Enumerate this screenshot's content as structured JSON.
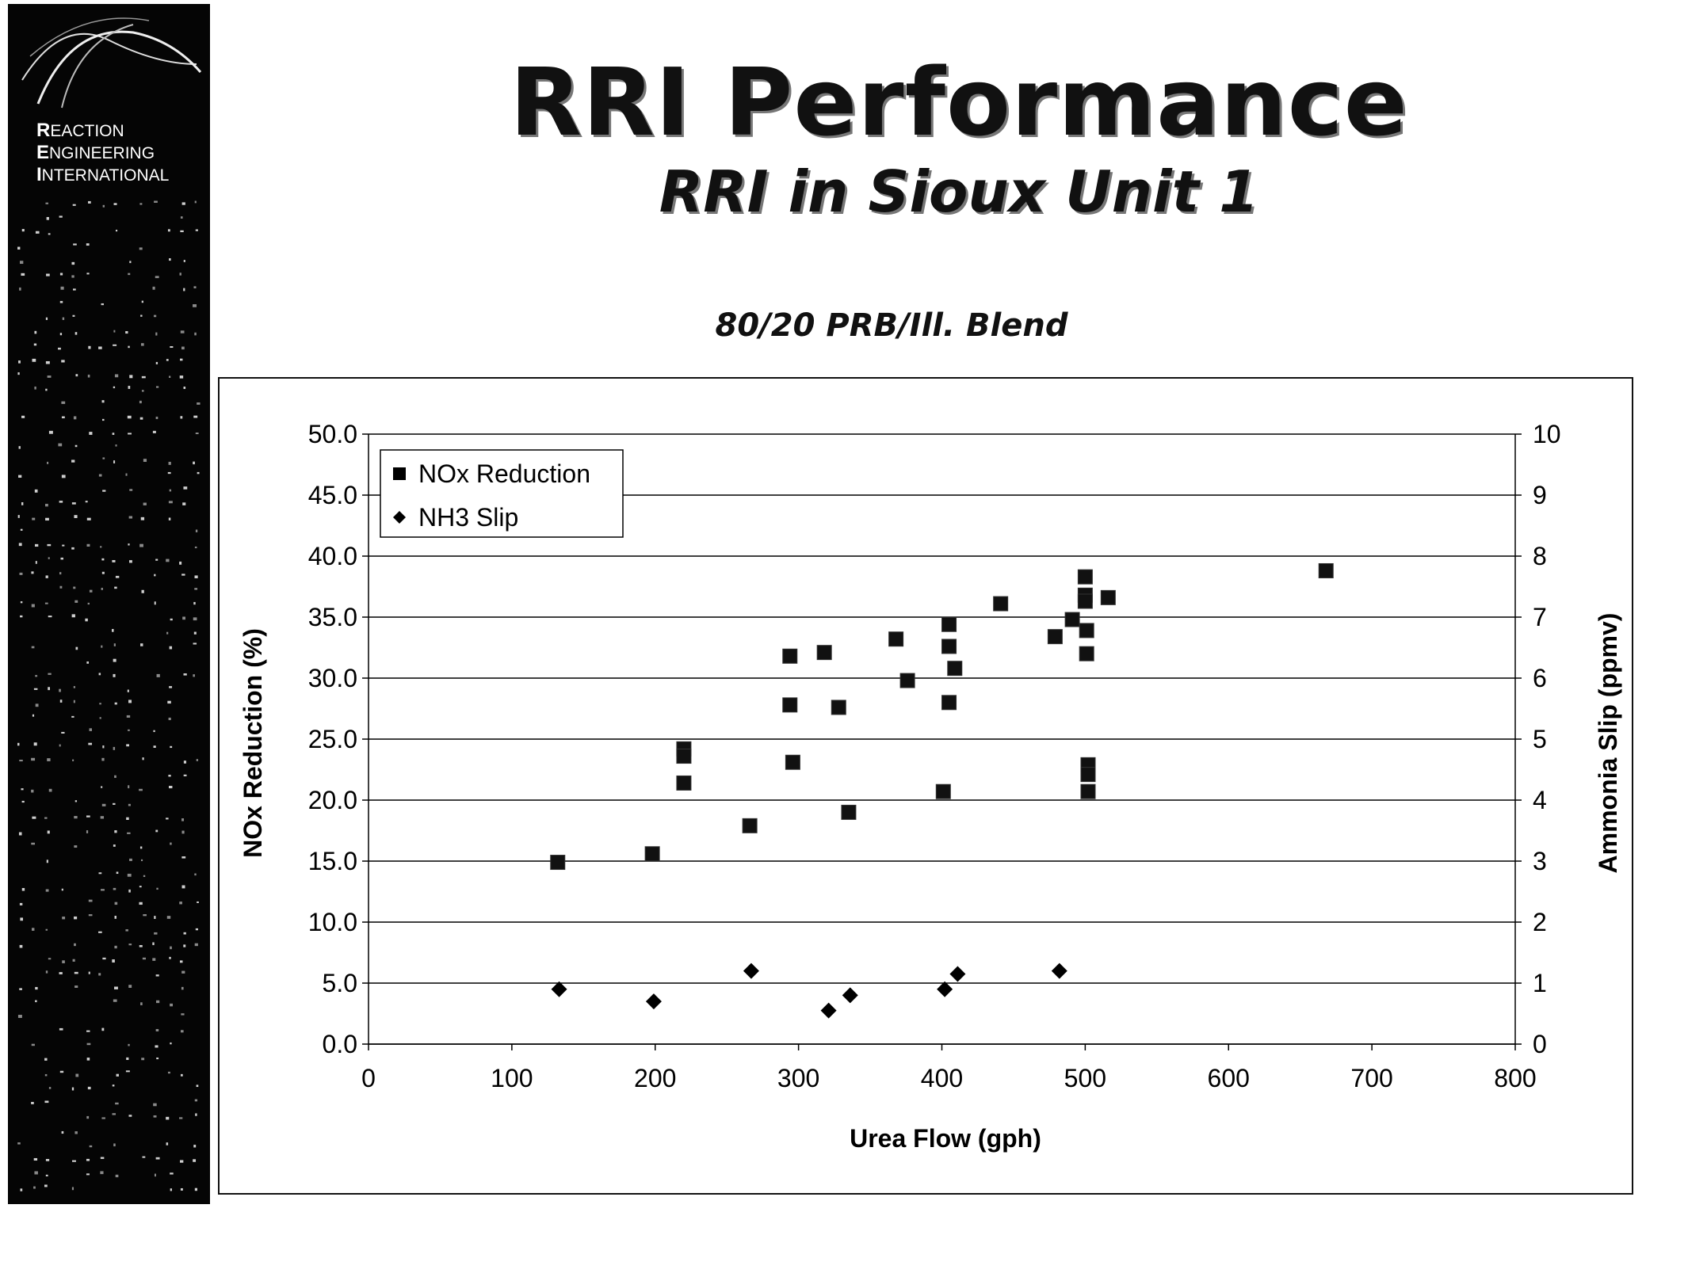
{
  "header": {
    "title": "RRI Performance",
    "subtitle": "RRI in Sioux Unit 1"
  },
  "banner": {
    "logo_lines": [
      {
        "initial": "R",
        "rest": "EACTION"
      },
      {
        "initial": "E",
        "rest": "NGINEERING"
      },
      {
        "initial": "I",
        "rest": "NTERNATIONAL"
      }
    ]
  },
  "chart_data": {
    "type": "scatter",
    "title": "80/20 PRB/Ill. Blend",
    "xlabel": "Urea Flow (gph)",
    "ylabel": "NOx Reduction (%)",
    "y2label": "Ammonia Slip (ppmv)",
    "xlim": [
      0,
      800
    ],
    "ylim": [
      0,
      50
    ],
    "y2lim": [
      0,
      10
    ],
    "xticks": [
      "0",
      "100",
      "200",
      "300",
      "400",
      "500",
      "600",
      "700",
      "800"
    ],
    "yticks": [
      "0.0",
      "5.0",
      "10.0",
      "15.0",
      "20.0",
      "25.0",
      "30.0",
      "35.0",
      "40.0",
      "45.0",
      "50.0"
    ],
    "y2ticks": [
      "0",
      "1",
      "2",
      "3",
      "4",
      "5",
      "6",
      "7",
      "8",
      "9",
      "10"
    ],
    "grid": "horizontal",
    "legend": "top-left",
    "series": [
      {
        "name": "NOx Reduction",
        "marker": "square",
        "axis": "left",
        "points": [
          [
            132,
            14.9
          ],
          [
            198,
            15.6
          ],
          [
            220,
            24.2
          ],
          [
            220,
            23.6
          ],
          [
            220,
            21.4
          ],
          [
            266,
            17.9
          ],
          [
            294,
            31.8
          ],
          [
            294,
            27.8
          ],
          [
            296,
            23.1
          ],
          [
            318,
            32.1
          ],
          [
            328,
            27.6
          ],
          [
            335,
            19.0
          ],
          [
            368,
            33.2
          ],
          [
            376,
            29.8
          ],
          [
            401,
            20.7
          ],
          [
            405,
            34.4
          ],
          [
            405,
            32.6
          ],
          [
            405,
            28.0
          ],
          [
            409,
            30.8
          ],
          [
            441,
            36.1
          ],
          [
            479,
            33.4
          ],
          [
            491,
            34.8
          ],
          [
            500,
            38.3
          ],
          [
            500,
            36.8
          ],
          [
            500,
            36.3
          ],
          [
            501,
            33.9
          ],
          [
            501,
            32.0
          ],
          [
            502,
            22.9
          ],
          [
            502,
            22.1
          ],
          [
            502,
            20.7
          ],
          [
            516,
            36.6
          ],
          [
            668,
            38.8
          ]
        ]
      },
      {
        "name": "NH3 Slip",
        "marker": "diamond",
        "axis": "right",
        "points": [
          [
            133,
            0.9
          ],
          [
            199,
            0.7
          ],
          [
            267,
            1.2
          ],
          [
            321,
            0.55
          ],
          [
            336,
            0.8
          ],
          [
            402,
            0.9
          ],
          [
            411,
            1.15
          ],
          [
            482,
            1.2
          ]
        ]
      }
    ]
  }
}
